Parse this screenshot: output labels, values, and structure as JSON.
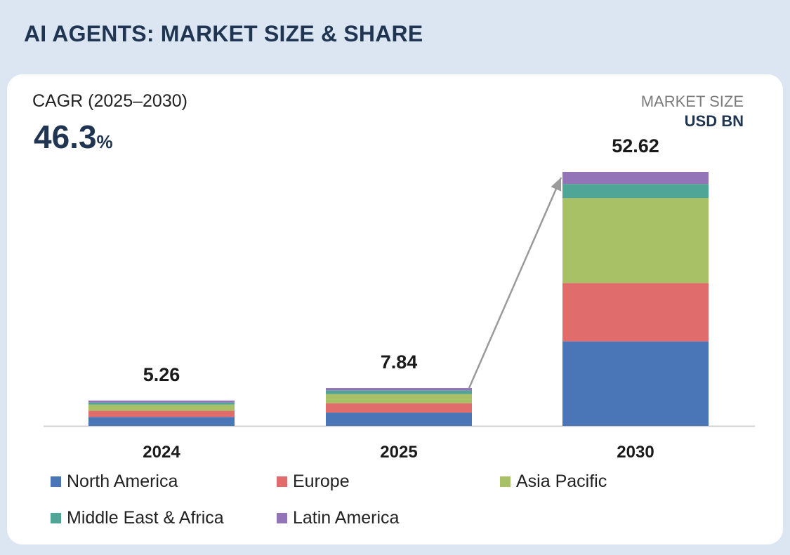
{
  "header": {
    "title": "AI AGENTS: MARKET SIZE & SHARE"
  },
  "cagr": {
    "label": "CAGR (2025–2030)",
    "value": "46.3",
    "unit": "%"
  },
  "units": {
    "label": "MARKET SIZE",
    "currency": "USD BN"
  },
  "colors": {
    "North America": "#4a76b8",
    "Europe": "#e06c6c",
    "Asia Pacific": "#a8c166",
    "Middle East & Africa": "#4fa596",
    "Latin America": "#9474b8"
  },
  "chart_data": {
    "type": "bar",
    "stacked": true,
    "title": "AI AGENTS: MARKET SIZE & SHARE",
    "xlabel": "",
    "ylabel": "Market Size (USD BN)",
    "ylim": [
      0,
      52.62
    ],
    "categories": [
      "2024",
      "2025",
      "2030"
    ],
    "totals": [
      "5.26",
      "7.84",
      "52.62"
    ],
    "series": [
      {
        "name": "North America",
        "values": [
          1.85,
          2.75,
          17.5
        ]
      },
      {
        "name": "Europe",
        "values": [
          1.3,
          1.95,
          12.1
        ]
      },
      {
        "name": "Asia Pacific",
        "values": [
          1.25,
          1.9,
          17.6
        ]
      },
      {
        "name": "Middle East & Africa",
        "values": [
          0.45,
          0.72,
          2.92
        ]
      },
      {
        "name": "Latin America",
        "values": [
          0.41,
          0.52,
          2.5
        ]
      }
    ],
    "annotation": "arrow from 2025 bar top to 2030 bar top",
    "grid": false,
    "legend_position": "bottom"
  }
}
